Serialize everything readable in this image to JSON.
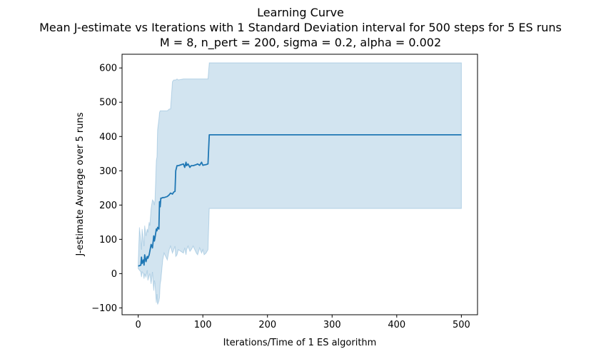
{
  "chart_data": {
    "type": "line",
    "title": "Learning Curve",
    "subtitle_lines": [
      "Mean J-estimate vs Iterations with 1 Standard Deviation interval for 500 steps for 5 ES runs",
      "M = 8, n_pert = 200, sigma = 0.2, alpha = 0.002"
    ],
    "xlabel": "Iterations/Time of 1 ES algorithm",
    "ylabel": "J-estimate Average over 5 runs",
    "xlim": [
      -25,
      525
    ],
    "ylim": [
      -120,
      640
    ],
    "xticks": [
      0,
      100,
      200,
      300,
      400,
      500
    ],
    "yticks": [
      -100,
      0,
      100,
      200,
      300,
      400,
      500,
      600
    ],
    "grid": false,
    "colors": {
      "line": "#1f77b4",
      "band": "#1f77b4"
    },
    "series": [
      {
        "x": [
          0,
          2,
          4,
          5,
          6,
          8,
          9,
          10,
          12,
          14,
          15,
          17,
          18,
          20,
          22,
          24,
          25,
          26,
          28,
          29,
          30,
          32,
          33,
          34,
          35,
          36,
          38,
          40,
          45,
          48,
          50,
          53,
          55,
          57,
          58,
          60,
          62,
          70,
          72,
          74,
          75,
          77,
          80,
          82,
          85,
          90,
          92,
          95,
          98,
          100,
          102,
          105,
          108,
          110,
          150,
          200,
          300,
          400,
          500
        ],
        "y": [
          22,
          23,
          25,
          48,
          30,
          40,
          25,
          55,
          35,
          50,
          45,
          55,
          65,
          85,
          75,
          110,
          95,
          105,
          130,
          125,
          135,
          130,
          210,
          195,
          220,
          220,
          222,
          222,
          225,
          230,
          235,
          232,
          238,
          240,
          300,
          315,
          315,
          320,
          310,
          325,
          315,
          320,
          310,
          315,
          315,
          318,
          320,
          316,
          325,
          316,
          317,
          318,
          320,
          405,
          405,
          405,
          405,
          405,
          405
        ],
        "upper": [
          30,
          135,
          90,
          70,
          130,
          95,
          80,
          140,
          110,
          130,
          120,
          150,
          140,
          190,
          215,
          210,
          200,
          215,
          330,
          340,
          420,
          450,
          470,
          475,
          475,
          475,
          475,
          475,
          475,
          480,
          480,
          560,
          565,
          565,
          565,
          568,
          565,
          568,
          568,
          568,
          568,
          568,
          568,
          568,
          568,
          568,
          568,
          568,
          568,
          568,
          568,
          568,
          568,
          615,
          615,
          615,
          615,
          615,
          615
        ],
        "lower": [
          15,
          10,
          5,
          -10,
          5,
          0,
          -15,
          0,
          -10,
          10,
          -20,
          -5,
          0,
          -30,
          5,
          -50,
          -20,
          -30,
          -85,
          -60,
          -90,
          -80,
          -70,
          -30,
          -20,
          0,
          40,
          60,
          40,
          70,
          80,
          60,
          70,
          80,
          50,
          55,
          70,
          60,
          75,
          55,
          70,
          80,
          65,
          70,
          80,
          60,
          55,
          75,
          60,
          70,
          55,
          60,
          70,
          190,
          190,
          190,
          190,
          190,
          190
        ]
      }
    ]
  }
}
